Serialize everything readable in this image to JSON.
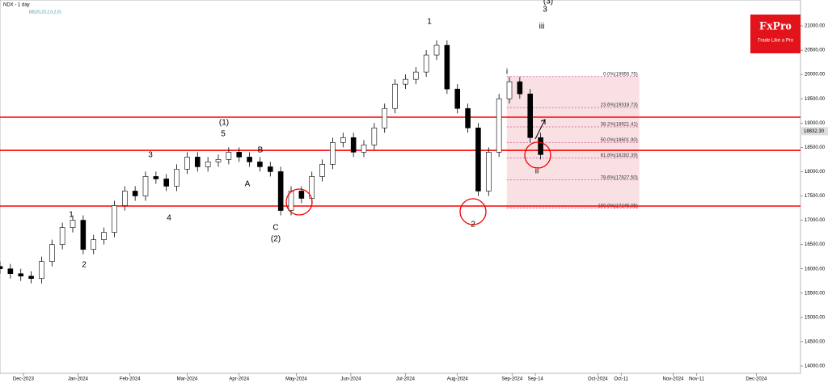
{
  "chart_data": {
    "type": "candlestick",
    "title": "NDX - 1 day",
    "subtitle": "BB(20,20,2,0,2,0)",
    "x": [
      0,
      4,
      8,
      12,
      16,
      20,
      24,
      28,
      32,
      36,
      40,
      44,
      48,
      52,
      56,
      60,
      64,
      68,
      72,
      76,
      80,
      84,
      88,
      92,
      96,
      100,
      104,
      108,
      112,
      116,
      120,
      124,
      128,
      132,
      136,
      140,
      144,
      148,
      152,
      156,
      160,
      164,
      168,
      172,
      176,
      180,
      184,
      188,
      192,
      196,
      200,
      204,
      208
    ],
    "open": [
      16050,
      16000,
      15900,
      15850,
      15800,
      16150,
      16500,
      16850,
      17000,
      16400,
      16600,
      16750,
      17300,
      17600,
      17500,
      17900,
      17850,
      17700,
      18050,
      18300,
      18100,
      18200,
      18250,
      18400,
      18300,
      18200,
      18100,
      18000,
      17200,
      17600,
      17450,
      17900,
      18150,
      18600,
      18700,
      18400,
      18550,
      18900,
      19300,
      19800,
      19900,
      20050,
      20400,
      20600,
      19700,
      19300,
      18900,
      17600,
      18400,
      19500,
      19850,
      19600,
      18700
    ],
    "high": [
      16150,
      16100,
      16000,
      15950,
      16250,
      16600,
      16950,
      17100,
      17100,
      16700,
      16850,
      17400,
      17700,
      17700,
      18000,
      18000,
      17950,
      18150,
      18400,
      18400,
      18300,
      18350,
      18500,
      18500,
      18400,
      18300,
      18200,
      18100,
      17700,
      17700,
      18000,
      18250,
      18700,
      18800,
      18800,
      18650,
      19000,
      19400,
      19900,
      20000,
      20150,
      20500,
      20700,
      20700,
      19800,
      19400,
      19000,
      18500,
      19600,
      19950,
      19950,
      19700,
      18800
    ],
    "low": [
      15900,
      15800,
      15750,
      15700,
      15700,
      16050,
      16400,
      16750,
      16300,
      16300,
      16500,
      16650,
      17200,
      17400,
      17400,
      17750,
      17600,
      17600,
      17950,
      18000,
      18000,
      18100,
      18150,
      18200,
      18100,
      18000,
      17900,
      17100,
      17100,
      17350,
      17350,
      17800,
      18050,
      18500,
      18300,
      18300,
      18450,
      18800,
      19200,
      19700,
      19800,
      19950,
      20300,
      19600,
      19200,
      18800,
      17500,
      17500,
      18300,
      19400,
      19500,
      18600,
      18250
    ],
    "close": [
      16000,
      15900,
      15850,
      15800,
      16150,
      16500,
      16850,
      17000,
      16400,
      16600,
      16750,
      17300,
      17600,
      17500,
      17900,
      17850,
      17700,
      18050,
      18300,
      18100,
      18200,
      18250,
      18400,
      18300,
      18200,
      18100,
      18000,
      17200,
      17600,
      17450,
      17900,
      18150,
      18600,
      18700,
      18400,
      18550,
      18900,
      19300,
      19800,
      19900,
      20050,
      20400,
      20600,
      19700,
      19300,
      18900,
      17600,
      18400,
      19500,
      19850,
      19600,
      18700,
      18350
    ],
    "up_color": "#ffffff",
    "down_color": "#000000",
    "xlim": [
      0,
      308
    ],
    "ylim": [
      13850,
      21532
    ],
    "xticks": [
      {
        "value": 9,
        "label": "Dec-2023"
      },
      {
        "value": 30,
        "label": "Jan-2024"
      },
      {
        "value": 50,
        "label": "Feb-2024"
      },
      {
        "value": 72,
        "label": "Mar-2024"
      },
      {
        "value": 92,
        "label": "Apr-2024"
      },
      {
        "value": 114,
        "label": "May-2024"
      },
      {
        "value": 135,
        "label": "Jun-2024"
      },
      {
        "value": 156,
        "label": "Jul-2024"
      },
      {
        "value": 176,
        "label": "Aug-2024"
      },
      {
        "value": 197,
        "label": "Sep-2024"
      },
      {
        "value": 206,
        "label": "Sep-14"
      },
      {
        "value": 230,
        "label": "Oct-2024"
      },
      {
        "value": 239,
        "label": "Oct-11"
      },
      {
        "value": 259,
        "label": "Nov-2024"
      },
      {
        "value": 268,
        "label": "Nov-11"
      },
      {
        "value": 291,
        "label": "Dec-2024"
      }
    ],
    "yticks": [
      {
        "value": 14000,
        "label": "14000.00"
      },
      {
        "value": 14500,
        "label": "14500.00"
      },
      {
        "value": 15000,
        "label": "15000.00"
      },
      {
        "value": 15500,
        "label": "15500.00"
      },
      {
        "value": 16000,
        "label": "16000.00"
      },
      {
        "value": 16500,
        "label": "16500.00"
      },
      {
        "value": 17000,
        "label": "17000.00"
      },
      {
        "value": 17500,
        "label": "17500.00"
      },
      {
        "value": 18000,
        "label": "18000.00"
      },
      {
        "value": 18500,
        "label": "18500.00"
      },
      {
        "value": 19000,
        "label": "19000.00"
      },
      {
        "value": 19500,
        "label": "19500.00"
      },
      {
        "value": 20000,
        "label": "20000.00"
      },
      {
        "value": 20500,
        "label": "20500.00"
      },
      {
        "value": 21000,
        "label": "21000.00"
      }
    ],
    "last_price": {
      "value": 18832.3,
      "label": "18832.30"
    },
    "levels": [
      19121,
      18439,
      17292
    ],
    "level_color": "#ff0000",
    "fib": [
      {
        "value": 19955.75,
        "label": "0.0%(19955.75)"
      },
      {
        "value": 19318.73,
        "label": "23.6%(19318.73)"
      },
      {
        "value": 18921.41,
        "label": "38.2%(18921.41)"
      },
      {
        "value": 18601.9,
        "label": "50.0%(18601.90)"
      },
      {
        "value": 18282.39,
        "label": "61.8%(18282.39)"
      },
      {
        "value": 17827.5,
        "label": "78.6%(17827.50)"
      },
      {
        "value": 17246.05,
        "label": "100.0%(17246.05)"
      }
    ],
    "annotations": [
      "1",
      "2",
      "3",
      "4",
      "5",
      "(1)",
      "A",
      "B",
      "C",
      "(2)",
      "1",
      "2",
      "3",
      "(3)",
      "i",
      "ii",
      "iii"
    ],
    "logo": {
      "name": "FxPro",
      "tagline": "Trade Like a Pro"
    }
  }
}
